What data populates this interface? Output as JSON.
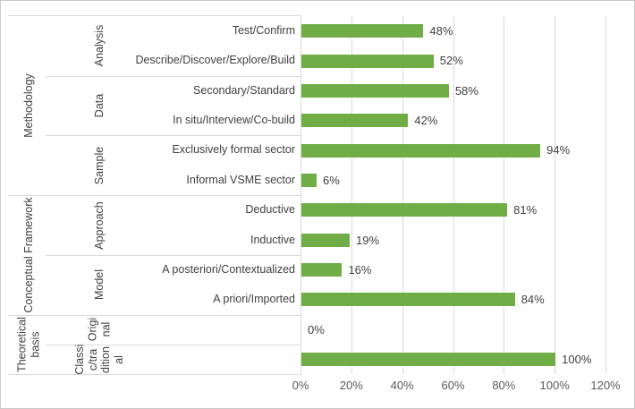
{
  "chart_data": {
    "type": "bar",
    "orientation": "horizontal",
    "title": "",
    "xlabel": "",
    "ylabel": "",
    "unit": "%",
    "axis": {
      "xlim": [
        0,
        120
      ],
      "xticks": [
        "0%",
        "20%",
        "40%",
        "60%",
        "80%",
        "100%",
        "120%"
      ],
      "xtick_values": [
        0,
        20,
        40,
        60,
        80,
        100,
        120
      ],
      "grid": true,
      "legend": "none"
    },
    "colors": {
      "bar": "#70AD47",
      "gridline": "#D9D9D9",
      "divider": "#D9D9D9",
      "figure_border": "#C9C9C9",
      "text": "#404040",
      "tick_text": "#595959"
    },
    "groups": [
      {
        "level1": "Methodology",
        "level2": "Analysis",
        "items": [
          {
            "label": "Test/Confirm",
            "value": 48,
            "value_label": "48%"
          },
          {
            "label": "Describe/Discover/Explore/Build",
            "value": 52,
            "value_label": "52%"
          }
        ]
      },
      {
        "level1": "Methodology",
        "level2": "Data",
        "items": [
          {
            "label": "Secondary/Standard",
            "value": 58,
            "value_label": "58%"
          },
          {
            "label": "In situ/Interview/Co-build",
            "value": 42,
            "value_label": "42%"
          }
        ]
      },
      {
        "level1": "Methodology",
        "level2": "Sample",
        "items": [
          {
            "label": "Exclusively formal sector",
            "value": 94,
            "value_label": "94%"
          },
          {
            "label": "Informal VSME sector",
            "value": 6,
            "value_label": "6%"
          }
        ]
      },
      {
        "level1": "Conceptual Framework",
        "level2": "Approach",
        "items": [
          {
            "label": "Deductive",
            "value": 81,
            "value_label": "81%"
          },
          {
            "label": "Inductive",
            "value": 19,
            "value_label": "19%"
          }
        ]
      },
      {
        "level1": "Conceptual Framework",
        "level2": "Model",
        "items": [
          {
            "label": "A posteriori/Contextualized",
            "value": 16,
            "value_label": "16%"
          },
          {
            "label": "A priori/Imported",
            "value": 84,
            "value_label": "84%"
          }
        ]
      },
      {
        "level1": "Theoretical basis",
        "level2": "Original",
        "level2_display_lines": [
          "Origi",
          "nal"
        ],
        "items": [
          {
            "label": "",
            "value": 0,
            "value_label": "0%"
          }
        ]
      },
      {
        "level1": "Theoretical basis",
        "level2": "Classic/traditional",
        "level2_display_lines": [
          "Classi",
          "c/tra",
          "dition",
          "al"
        ],
        "items": [
          {
            "label": "",
            "value": 100,
            "value_label": "100%"
          }
        ]
      }
    ],
    "level1_display_lines": {
      "Methodology": [
        "Methodology"
      ],
      "Conceptual Framework": [
        "Conceptual Framework"
      ],
      "Theoretical basis": [
        "Theoretical",
        "basis"
      ]
    }
  }
}
